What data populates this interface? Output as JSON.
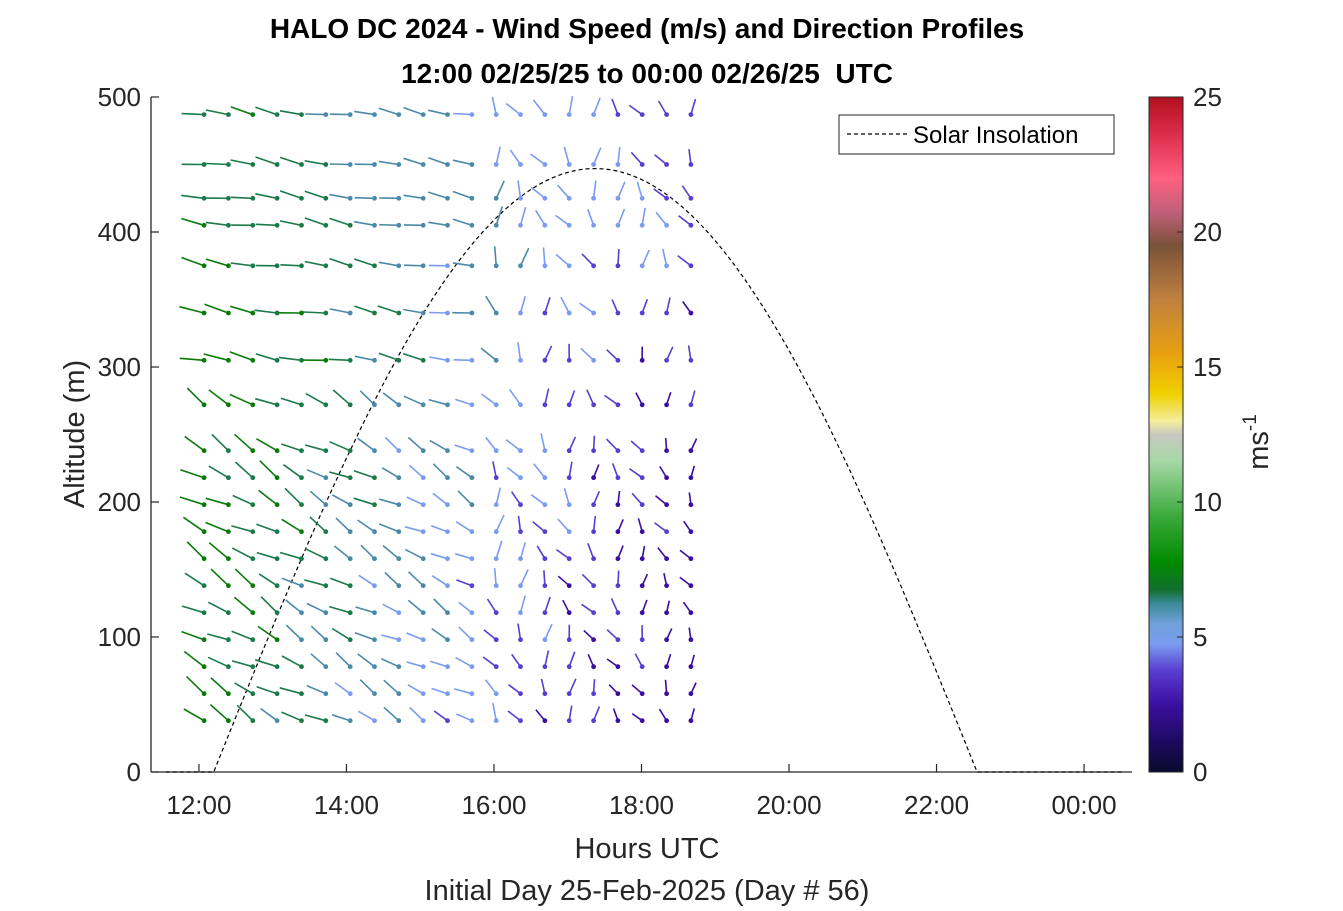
{
  "chart_data": {
    "type": "quiver",
    "title": "HALO DC 2024 - Wind Speed (m/s) and Direction Profiles",
    "subtitle": "12:00 02/25/25 to 00:00 02/26/25  UTC",
    "xlabel": "Hours UTC",
    "xlabel2": "Initial Day 25-Feb-2025 (Day # 56)",
    "ylabel": "Altitude (m)",
    "xlim": [
      11.35,
      24.65
    ],
    "ylim": [
      0,
      500
    ],
    "x_ticks": [
      "12:00",
      "14:00",
      "16:00",
      "18:00",
      "20:00",
      "22:00",
      "00:00"
    ],
    "x_tick_values": [
      12,
      14,
      16,
      18,
      20,
      22,
      24
    ],
    "y_ticks": [
      "0",
      "100",
      "200",
      "300",
      "400",
      "500"
    ],
    "y_tick_values": [
      0,
      100,
      200,
      300,
      400,
      500
    ],
    "colorbar": {
      "label": "ms",
      "label_exponent": "-1",
      "range": [
        0,
        25
      ],
      "ticks": [
        "0",
        "5",
        "10",
        "15",
        "20",
        "25"
      ],
      "tick_values": [
        0,
        5,
        10,
        15,
        20,
        25
      ]
    },
    "legend": {
      "entries": [
        "Solar Insolation"
      ],
      "placement": "top-right"
    },
    "solar_insolation": {
      "style": "dashed",
      "rise_hour": 12.2,
      "set_hour": 22.55,
      "peak_hour": 17.37,
      "peak_altitude": 447
    },
    "wind_times": [
      12.07,
      12.4,
      12.73,
      13.06,
      13.39,
      13.72,
      14.05,
      14.38,
      14.71,
      15.04,
      15.37,
      15.7,
      16.03,
      16.36,
      16.69,
      17.02,
      17.35,
      17.68,
      18.01,
      18.34,
      18.67
    ],
    "wind_altitudes": [
      38,
      58,
      78,
      98,
      118,
      138,
      158,
      178,
      198,
      218,
      238,
      272,
      305,
      340,
      375,
      405,
      425,
      450,
      487
    ],
    "grid": false
  }
}
